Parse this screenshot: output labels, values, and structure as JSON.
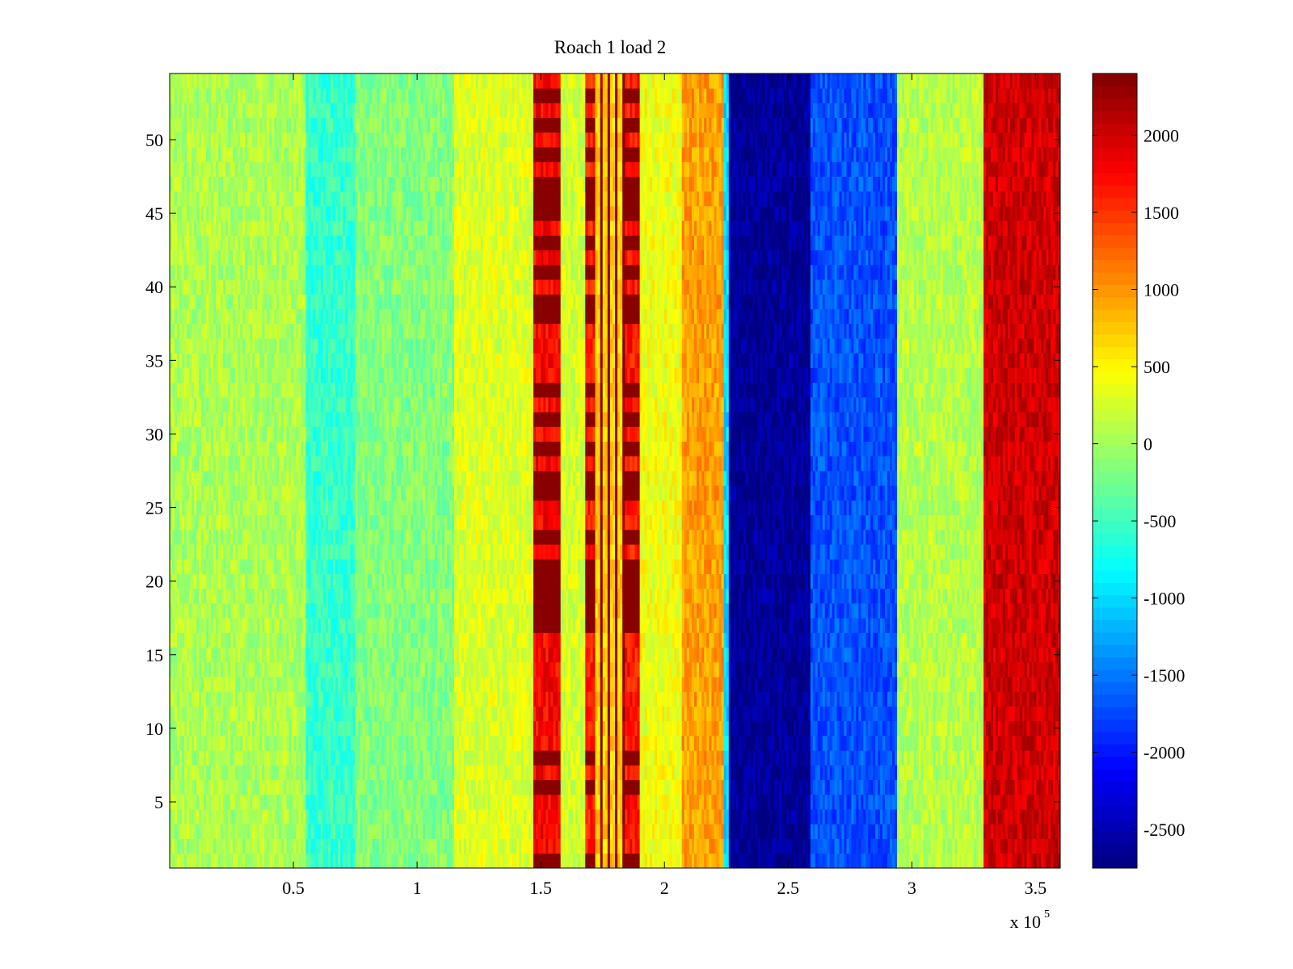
{
  "chart_data": {
    "type": "heatmap",
    "title": "Roach 1 load 2",
    "xlabel": "",
    "ylabel": "",
    "x_multiplier_label": "x 10",
    "x_multiplier_exponent": "5",
    "xlim": [
      0,
      3.6
    ],
    "ylim": [
      0.5,
      54.5
    ],
    "xticks": [
      0.5,
      1,
      1.5,
      2,
      2.5,
      3,
      3.5
    ],
    "xtick_labels": [
      "0.5",
      "1",
      "1.5",
      "2",
      "2.5",
      "3",
      "3.5"
    ],
    "yticks": [
      5,
      10,
      15,
      20,
      25,
      30,
      35,
      40,
      45,
      50
    ],
    "ytick_labels": [
      "5",
      "10",
      "15",
      "20",
      "25",
      "30",
      "35",
      "40",
      "45",
      "50"
    ],
    "rows": 54,
    "colormap": "jet",
    "clim": [
      -2750,
      2400
    ],
    "colorbar": {
      "ticks": [
        -2500,
        -2000,
        -1500,
        -1000,
        -500,
        0,
        500,
        1000,
        1500,
        2000
      ],
      "tick_labels": [
        "-2500",
        "-2000",
        "-1500",
        "-1000",
        "-500",
        "0",
        "500",
        "1000",
        "1500",
        "2000"
      ]
    },
    "column_bands": [
      {
        "x_start": 0.0,
        "x_end": 0.55,
        "value": 50
      },
      {
        "x_start": 0.55,
        "x_end": 0.75,
        "value": -550
      },
      {
        "x_start": 0.75,
        "x_end": 1.15,
        "value": -150
      },
      {
        "x_start": 1.15,
        "x_end": 1.47,
        "value": 300
      },
      {
        "x_start": 1.47,
        "x_end": 1.58,
        "value": 1750
      },
      {
        "x_start": 1.58,
        "x_end": 1.68,
        "value": 250
      },
      {
        "x_start": 1.68,
        "x_end": 1.72,
        "value": 1600
      },
      {
        "x_start": 1.72,
        "x_end": 1.74,
        "value": 700
      },
      {
        "x_start": 1.74,
        "x_end": 1.75,
        "value": 2300
      },
      {
        "x_start": 1.75,
        "x_end": 1.77,
        "value": 700
      },
      {
        "x_start": 1.77,
        "x_end": 1.78,
        "value": 2300
      },
      {
        "x_start": 1.78,
        "x_end": 1.8,
        "value": 700
      },
      {
        "x_start": 1.8,
        "x_end": 1.81,
        "value": 2300
      },
      {
        "x_start": 1.81,
        "x_end": 1.83,
        "value": 700
      },
      {
        "x_start": 1.83,
        "x_end": 1.84,
        "value": 2300
      },
      {
        "x_start": 1.84,
        "x_end": 1.9,
        "value": 1650
      },
      {
        "x_start": 1.9,
        "x_end": 2.07,
        "value": 400
      },
      {
        "x_start": 2.07,
        "x_end": 2.24,
        "value": 950
      },
      {
        "x_start": 2.24,
        "x_end": 2.26,
        "value": -1000
      },
      {
        "x_start": 2.26,
        "x_end": 2.59,
        "value": -2650
      },
      {
        "x_start": 2.59,
        "x_end": 2.94,
        "value": -1700
      },
      {
        "x_start": 2.94,
        "x_end": 3.29,
        "value": 100
      },
      {
        "x_start": 3.29,
        "x_end": 3.6,
        "value": 2000
      }
    ],
    "saturated_rows": [
      1,
      6,
      8,
      17,
      18,
      19,
      20,
      21,
      23,
      26,
      27,
      29,
      31,
      33,
      38,
      39,
      41,
      43,
      45,
      46,
      47,
      49,
      51,
      53
    ]
  }
}
